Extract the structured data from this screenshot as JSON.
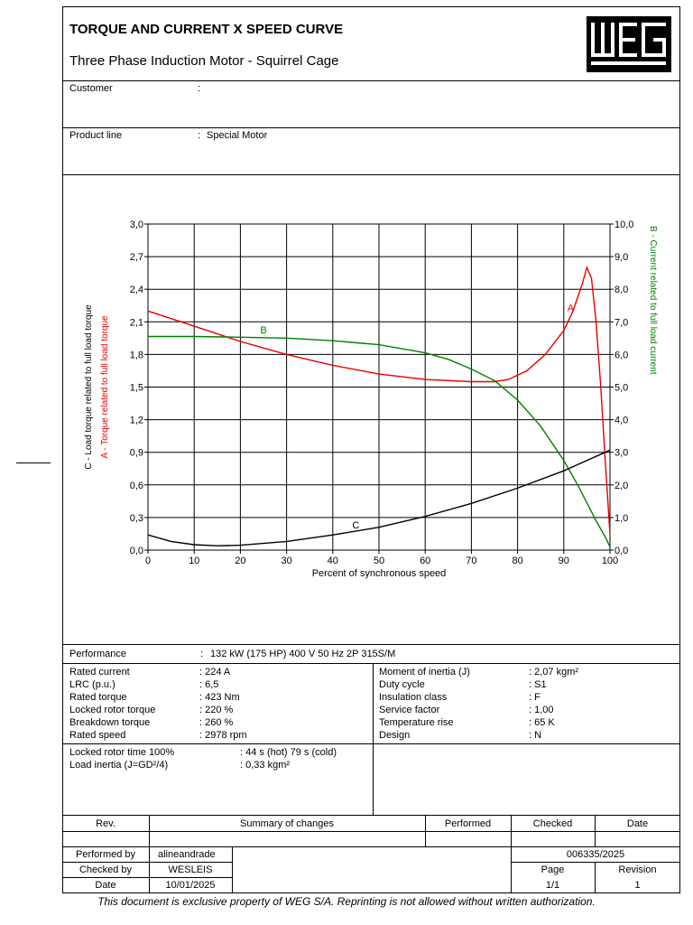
{
  "header": {
    "title": "TORQUE AND CURRENT X SPEED CURVE",
    "subtitle": "Three Phase Induction Motor - Squirrel Cage",
    "logo_text": "WEG"
  },
  "customer": {
    "label": "Customer",
    "sep": ":",
    "value": ""
  },
  "product_line": {
    "label": "Product line",
    "sep": ":",
    "value": "Special Motor"
  },
  "chart_data": {
    "type": "line",
    "xlabel": "Percent of synchronous speed",
    "ylabel_left_c": "C - Load torque related to full load torque",
    "ylabel_left_a": "A - Torque related to full load torque",
    "ylabel_right": "B - Current related to full load current",
    "x_ticks": [
      "0",
      "10",
      "20",
      "30",
      "40",
      "50",
      "60",
      "70",
      "80",
      "90",
      "100"
    ],
    "y_left_ticks": [
      "0,0",
      "0,3",
      "0,6",
      "0,9",
      "1,2",
      "1,5",
      "1,8",
      "2,1",
      "2,4",
      "2,7",
      "3,0"
    ],
    "y_right_ticks": [
      "0,0",
      "1,0",
      "2,0",
      "3,0",
      "4,0",
      "5,0",
      "6,0",
      "7,0",
      "8,0",
      "9,0",
      "10,0"
    ],
    "xlim": [
      0,
      100
    ],
    "ylim_left": [
      0,
      3.0
    ],
    "ylim_right": [
      0,
      10.0
    ],
    "grid": true,
    "series": [
      {
        "name": "A",
        "axis": "left",
        "color": "#e60000",
        "x": [
          0,
          10,
          20,
          30,
          40,
          50,
          60,
          70,
          75,
          78,
          82,
          86,
          90,
          92,
          94,
          95,
          96,
          97,
          98,
          99,
          100
        ],
        "y": [
          2.2,
          2.06,
          1.92,
          1.8,
          1.7,
          1.62,
          1.57,
          1.55,
          1.55,
          1.57,
          1.65,
          1.8,
          2.02,
          2.2,
          2.45,
          2.6,
          2.5,
          2.1,
          1.5,
          0.8,
          0.15
        ]
      },
      {
        "name": "B",
        "axis": "right",
        "color": "#008000",
        "x": [
          0,
          10,
          20,
          30,
          40,
          50,
          60,
          65,
          70,
          75,
          80,
          85,
          90,
          93,
          95,
          97,
          99,
          100
        ],
        "y": [
          6.55,
          6.55,
          6.53,
          6.5,
          6.42,
          6.3,
          6.05,
          5.85,
          5.55,
          5.2,
          4.6,
          3.8,
          2.75,
          2.0,
          1.45,
          0.9,
          0.4,
          0.1
        ]
      },
      {
        "name": "C",
        "axis": "left",
        "color": "#000000",
        "x": [
          0,
          5,
          10,
          15,
          20,
          30,
          40,
          50,
          60,
          70,
          80,
          90,
          100
        ],
        "y": [
          0.14,
          0.08,
          0.05,
          0.04,
          0.045,
          0.08,
          0.14,
          0.21,
          0.31,
          0.43,
          0.57,
          0.73,
          0.92
        ]
      }
    ],
    "annotations": [
      {
        "text": "A",
        "x": 91.5,
        "y": 2.2,
        "axis": "left",
        "color": "#e60000"
      },
      {
        "text": "B",
        "x": 25,
        "y": 6.65,
        "axis": "right",
        "color": "#008000"
      },
      {
        "text": "C",
        "x": 45,
        "y": 0.2,
        "axis": "left",
        "color": "#000000"
      }
    ]
  },
  "performance": {
    "label": "Performance",
    "sep": ":",
    "value": "132 kW (175 HP) 400 V 50 Hz 2P 315S/M"
  },
  "specs_left": [
    {
      "label": "Rated current",
      "value": ": 224 A"
    },
    {
      "label": "LRC (p.u.)",
      "value": ": 6,5"
    },
    {
      "label": "Rated torque",
      "value": ": 423 Nm"
    },
    {
      "label": "Locked rotor torque",
      "value": ": 220 %"
    },
    {
      "label": "Breakdown torque",
      "value": ": 260 %"
    },
    {
      "label": "Rated speed",
      "value": ": 2978 rpm"
    }
  ],
  "specs_right": [
    {
      "label": "Moment of inertia (J)",
      "value": ": 2,07 kgm²"
    },
    {
      "label": "Duty cycle",
      "value": ": S1"
    },
    {
      "label": "Insulation class",
      "value": ": F"
    },
    {
      "label": "Service factor",
      "value": ": 1,00"
    },
    {
      "label": "Temperature rise",
      "value": ": 65 K"
    },
    {
      "label": "Design",
      "value": ": N"
    }
  ],
  "locked": [
    {
      "label": "Locked rotor time 100%",
      "value": ": 44 s (hot) 79 s (cold)"
    },
    {
      "label": "Load inertia (J=GD²/4)",
      "value": ": 0,33 kgm²"
    }
  ],
  "revision_table": {
    "headers": [
      "Rev.",
      "Summary of changes",
      "Performed",
      "Checked",
      "Date"
    ]
  },
  "signoff": {
    "performed_by_label": "Performed by",
    "performed_by": "alineandrade",
    "checked_by_label": "Checked by",
    "checked_by": "WESLEIS",
    "date_label": "Date",
    "date": "10/01/2025",
    "doc_number": "006335/2025",
    "page_label": "Page",
    "page": "1/1",
    "revision_label": "Revision",
    "revision": "1"
  },
  "footer": "This document is exclusive property of WEG S/A. Reprinting is not allowed without written authorization."
}
